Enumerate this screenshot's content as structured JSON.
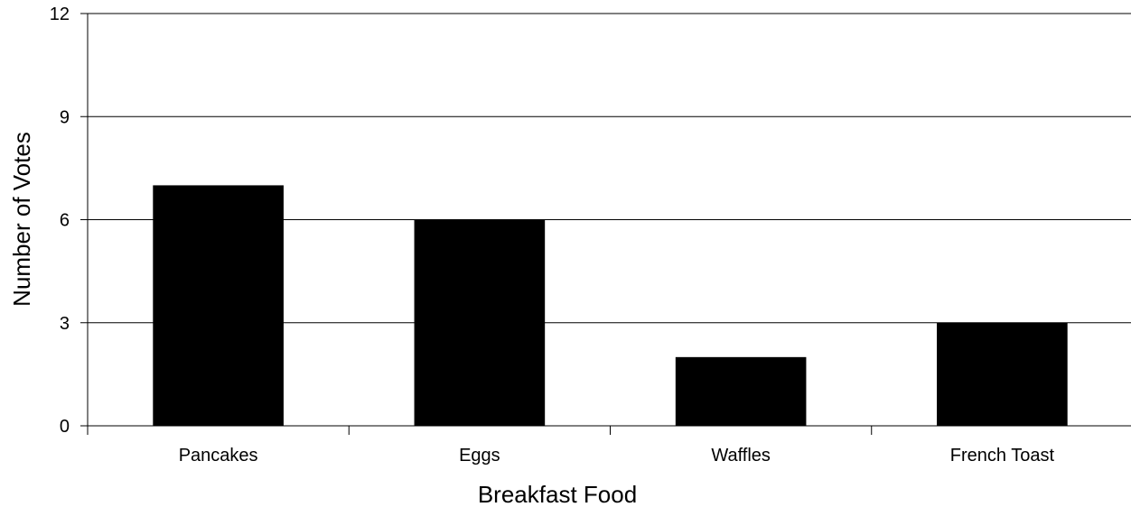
{
  "chart_data": {
    "type": "bar",
    "title": "",
    "xlabel": "Breakfast Food",
    "ylabel": "Number of Votes",
    "categories": [
      "Pancakes",
      "Eggs",
      "Waffles",
      "French Toast"
    ],
    "values": [
      7,
      6,
      2,
      3
    ],
    "ylim": [
      0,
      12
    ],
    "yticks": [
      0,
      3,
      6,
      9,
      12
    ],
    "grid": true,
    "bar_color": "#000000",
    "grid_color": "#000000"
  }
}
